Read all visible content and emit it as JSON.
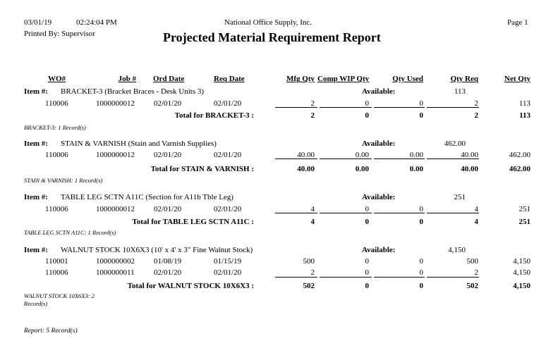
{
  "header": {
    "date": "03/01/19",
    "time": "02:24:04 PM",
    "company": "National Office Supply, Inc.",
    "page": "Page 1",
    "printed_by": "Printed By: Supervisor",
    "title": "Projected Material Requirement Report"
  },
  "columns": {
    "wo": "WO#",
    "job": "Job #",
    "ord_date": "Ord Date",
    "req_date": "Req Date",
    "mfg_qty": "Mfg Qty",
    "comp_wip_qty": "Comp WIP Qty",
    "qty_used": "Qty Used",
    "qty_req": "Qty Req",
    "net_qty": "Net Qty"
  },
  "labels": {
    "item": "Item #:",
    "available": "Available:"
  },
  "groups": [
    {
      "item": "BRACKET-3 (Bracket Braces - Desk Units 3)",
      "available": "113",
      "rows": [
        {
          "wo": "110006",
          "job": "1000000012",
          "ord_date": "02/01/20",
          "req_date": "02/01/20",
          "mfg_qty": "2",
          "comp_wip_qty": "0",
          "qty_used": "0",
          "qty_req": "2",
          "net_qty": "113"
        }
      ],
      "total_label": "Total for BRACKET-3 :",
      "totals": {
        "mfg_qty": "2",
        "comp_wip_qty": "0",
        "qty_used": "0",
        "qty_req": "2",
        "net_qty": "113"
      },
      "records": "BRACKET-3: 1 Record(s)"
    },
    {
      "item": "STAIN & VARNISH (Stain and Varnish Supplies)",
      "available": "462.00",
      "rows": [
        {
          "wo": "110006",
          "job": "1000000012",
          "ord_date": "02/01/20",
          "req_date": "02/01/20",
          "mfg_qty": "40.00",
          "comp_wip_qty": "0.00",
          "qty_used": "0.00",
          "qty_req": "40.00",
          "net_qty": "462.00"
        }
      ],
      "total_label": "Total for STAIN & VARNISH :",
      "totals": {
        "mfg_qty": "40.00",
        "comp_wip_qty": "0.00",
        "qty_used": "0.00",
        "qty_req": "40.00",
        "net_qty": "462.00"
      },
      "records": "STAIN & VARNISH: 1 Record(s)"
    },
    {
      "item": "TABLE LEG SCTN A11C (Section for A11b Tble Leg)",
      "available": "251",
      "rows": [
        {
          "wo": "110006",
          "job": "1000000012",
          "ord_date": "02/01/20",
          "req_date": "02/01/20",
          "mfg_qty": "4",
          "comp_wip_qty": "0",
          "qty_used": "0",
          "qty_req": "4",
          "net_qty": "251"
        }
      ],
      "total_label": "Total for TABLE LEG SCTN A11C :",
      "totals": {
        "mfg_qty": "4",
        "comp_wip_qty": "0",
        "qty_used": "0",
        "qty_req": "4",
        "net_qty": "251"
      },
      "records": "TABLE LEG SCTN A11C: 1 Record(s)"
    },
    {
      "item": "WALNUT STOCK 10X6X3 (10' x 4' x 3\" Fine Walnut Stock)",
      "available": "4,150",
      "rows": [
        {
          "wo": "110001",
          "job": "1000000002",
          "ord_date": "01/08/19",
          "req_date": "01/15/19",
          "mfg_qty": "500",
          "comp_wip_qty": "0",
          "qty_used": "0",
          "qty_req": "500",
          "net_qty": "4,150"
        },
        {
          "wo": "110006",
          "job": "1000000011",
          "ord_date": "02/01/20",
          "req_date": "02/01/20",
          "mfg_qty": "2",
          "comp_wip_qty": "0",
          "qty_used": "0",
          "qty_req": "2",
          "net_qty": "4,150"
        }
      ],
      "total_label": "Total for WALNUT STOCK 10X6X3 :",
      "totals": {
        "mfg_qty": "502",
        "comp_wip_qty": "0",
        "qty_used": "0",
        "qty_req": "502",
        "net_qty": "4,150"
      },
      "records": "WALNUT STOCK 10X6X3: 2 Record(s)"
    }
  ],
  "footer": {
    "report_records": "Report: 5 Record(s)"
  }
}
